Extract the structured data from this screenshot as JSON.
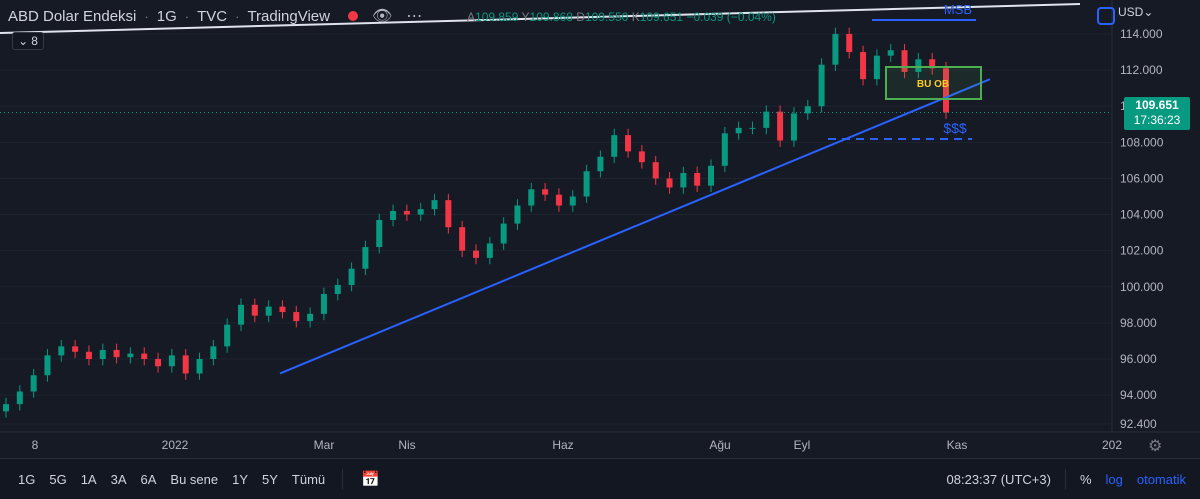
{
  "header": {
    "title": "ABD Dolar Endeksi",
    "interval": "1G",
    "exchange": "TVC",
    "source": "TradingView",
    "collapse_count": "8"
  },
  "ohlc": {
    "o_label": "A",
    "o_value": "109.859",
    "h_label": "Y",
    "h_value": "109.868",
    "l_label": "D",
    "l_value": "109.550",
    "c_label": "K",
    "c_value": "109.651",
    "change": "−0.039 (−0.04%)"
  },
  "price_axis": {
    "currency": "USD",
    "labels": [
      "114.000",
      "112.000",
      "110.000",
      "108.000",
      "106.000",
      "104.000",
      "102.000",
      "100.000",
      "98.000",
      "96.000",
      "94.000",
      "92.400"
    ],
    "last_price": "109.651",
    "countdown": "17:36:23"
  },
  "time_axis": {
    "labels": [
      "8",
      "2022",
      "Mar",
      "Nis",
      "Haz",
      "Ağu",
      "Eyl",
      "Kas",
      "202"
    ]
  },
  "annotations": {
    "msb": "MSB",
    "zone": "BU OB",
    "liquidity": "$$$"
  },
  "chart_data": {
    "type": "candlestick",
    "symbol": "ABD Dolar Endeksi",
    "ylim": [
      92.4,
      115
    ],
    "series": [
      {
        "name": "close",
        "values": [
          93.5,
          94.2,
          95.1,
          96.2,
          96.7,
          96.4,
          96.0,
          96.5,
          96.1,
          96.3,
          96.0,
          95.6,
          96.2,
          95.2,
          96.0,
          96.7,
          97.9,
          99.0,
          98.4,
          98.9,
          98.6,
          98.1,
          98.5,
          99.6,
          100.1,
          101.0,
          102.2,
          103.7,
          104.2,
          104.0,
          104.3,
          104.8,
          103.3,
          102.0,
          101.6,
          102.4,
          103.5,
          104.5,
          105.4,
          105.1,
          104.5,
          105.0,
          106.4,
          107.2,
          108.4,
          107.5,
          106.9,
          106.0,
          105.5,
          106.3,
          105.6,
          106.7,
          108.5,
          108.8,
          108.8,
          109.7,
          108.1,
          109.6,
          110.0,
          112.3,
          114.0,
          113.0,
          111.5,
          112.8,
          113.1,
          111.9,
          112.6,
          112.1,
          109.651
        ]
      }
    ]
  },
  "toolbar": {
    "timeframes": [
      "1G",
      "5G",
      "1A",
      "3A",
      "6A",
      "Bu sene",
      "1Y",
      "5Y",
      "Tümü"
    ],
    "time": "08:23:37 (UTC+3)",
    "percent": "%",
    "log": "log",
    "auto": "otomatik"
  },
  "colors": {
    "up": "#089981",
    "down": "#f23645",
    "trendline": "#2962ff",
    "zone_border": "#4caf50",
    "zone_text": "#ffca28"
  }
}
